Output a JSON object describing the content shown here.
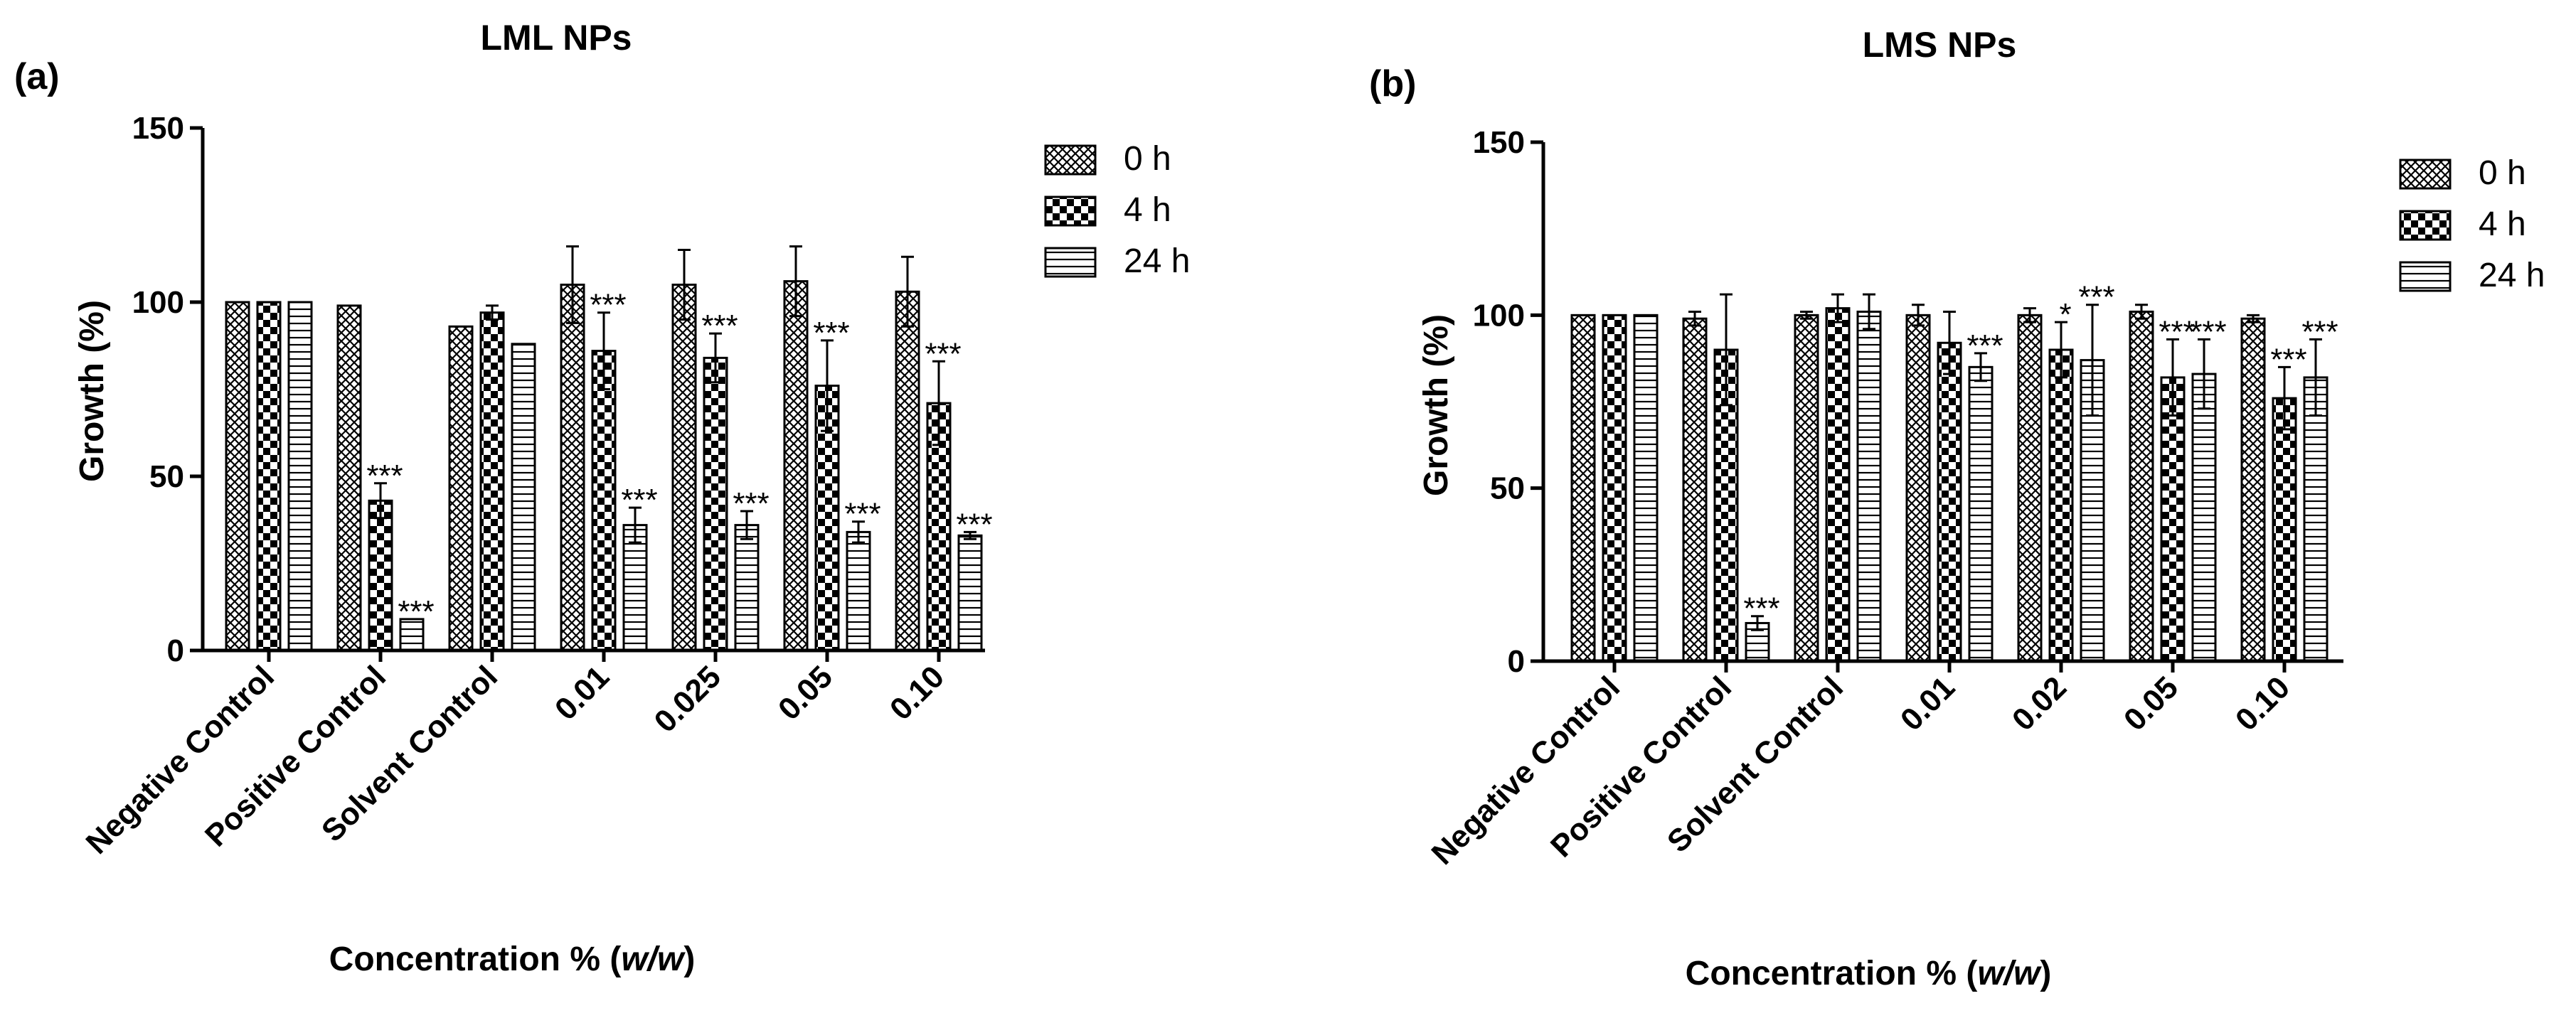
{
  "chart_data": [
    {
      "type": "bar",
      "panel": "(a)",
      "title": "LML NPs",
      "xlabel_main": "Concentration % (",
      "xlabel_italic": "w/w",
      "xlabel_end": ")",
      "ylabel": "Growth (%)",
      "ylim": [
        0,
        150
      ],
      "yticks": [
        "0",
        "50",
        "100",
        "150"
      ],
      "ytick_values": [
        0,
        50,
        100,
        150
      ],
      "categories": [
        "Negative Control",
        "Positive Control",
        "Solvent Control",
        "0.01",
        "0.025",
        "0.05",
        "0.10"
      ],
      "series": [
        {
          "name": "0 h",
          "values": [
            100,
            99,
            93,
            105,
            105,
            106,
            103
          ],
          "errors": [
            0,
            0,
            0,
            11,
            10,
            10,
            10
          ],
          "stars": [
            "",
            "",
            "",
            "",
            "",
            "",
            ""
          ]
        },
        {
          "name": "4 h",
          "values": [
            100,
            43,
            97,
            86,
            84,
            76,
            71
          ],
          "errors": [
            0,
            5,
            2,
            11,
            7,
            13,
            12
          ],
          "stars": [
            "",
            "***",
            "",
            "***",
            "***",
            "***",
            "***"
          ]
        },
        {
          "name": "24 h",
          "values": [
            100,
            9,
            88,
            36,
            36,
            34,
            33
          ],
          "errors": [
            0,
            0,
            0,
            5,
            4,
            3,
            1
          ],
          "stars": [
            "",
            "***",
            "",
            "***",
            "***",
            "***",
            "***"
          ]
        }
      ],
      "legend": [
        "0 h",
        "4 h",
        "24 h"
      ]
    },
    {
      "type": "bar",
      "panel": "(b)",
      "title": "LMS NPs",
      "xlabel_main": "Concentration % (",
      "xlabel_italic": "w/w",
      "xlabel_end": ")",
      "ylabel": "Growth (%)",
      "ylim": [
        0,
        150
      ],
      "yticks": [
        "0",
        "50",
        "100",
        "150"
      ],
      "ytick_values": [
        0,
        50,
        100,
        150
      ],
      "categories": [
        "Negative Control",
        "Positive Control",
        "Solvent Control",
        "0.01",
        "0.02",
        "0.05",
        "0.10"
      ],
      "series": [
        {
          "name": "0 h",
          "values": [
            100,
            99,
            100,
            100,
            100,
            101,
            99
          ],
          "errors": [
            0,
            2,
            1,
            3,
            2,
            2,
            1
          ],
          "stars": [
            "",
            "",
            "",
            "",
            "",
            "",
            ""
          ]
        },
        {
          "name": "4 h",
          "values": [
            100,
            90,
            102,
            92,
            90,
            82,
            76
          ],
          "errors": [
            0,
            16,
            4,
            9,
            8,
            11,
            9
          ],
          "stars": [
            "",
            "",
            "",
            "",
            "*",
            "***",
            "***"
          ]
        },
        {
          "name": "24 h",
          "values": [
            100,
            11,
            101,
            85,
            87,
            83,
            82
          ],
          "errors": [
            0,
            2,
            5,
            4,
            16,
            10,
            11
          ],
          "stars": [
            "",
            "***",
            "",
            "***",
            "***",
            "***",
            "***"
          ]
        }
      ],
      "legend": [
        "0 h",
        "4 h",
        "24 h"
      ]
    }
  ]
}
